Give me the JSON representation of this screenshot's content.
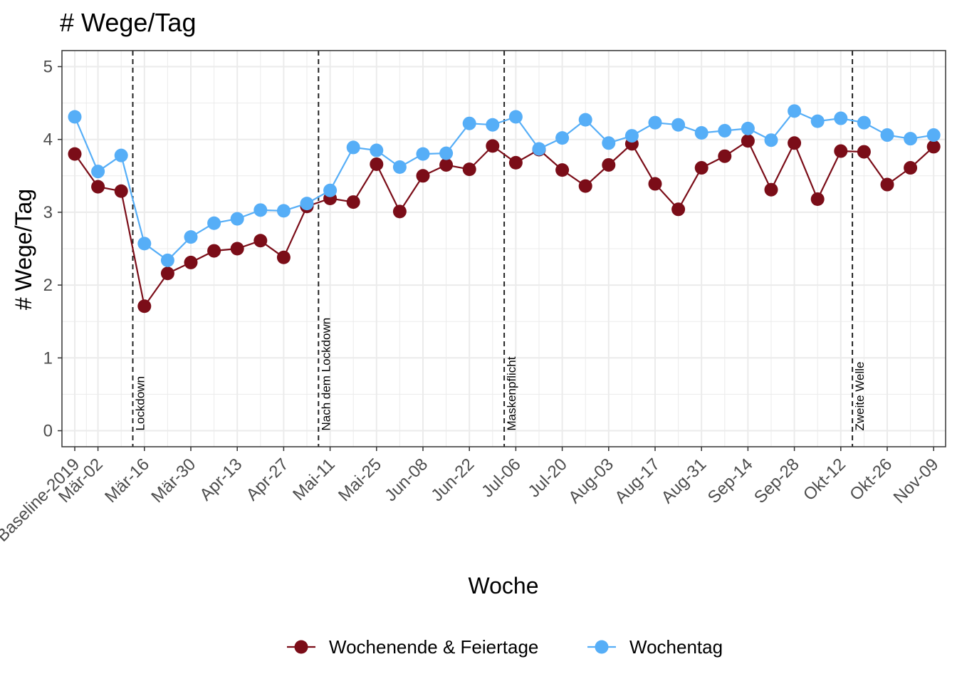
{
  "chart_data": {
    "type": "line",
    "title": "# Wege/Tag",
    "xlabel": "Woche",
    "ylabel": "# Wege/Tag",
    "ylim": [
      -0.22,
      5.22
    ],
    "yticks": [
      0,
      1,
      2,
      3,
      4,
      5
    ],
    "grid": true,
    "legend_position": "bottom",
    "x_tick_labels": [
      "Baseline-2019",
      "Mär-02",
      "Mär-16",
      "Mär-30",
      "Apr-13",
      "Apr-27",
      "Mai-11",
      "Mai-25",
      "Jun-08",
      "Jun-22",
      "Jul-06",
      "Jul-20",
      "Aug-03",
      "Aug-17",
      "Aug-31",
      "Sep-14",
      "Sep-28",
      "Okt-12",
      "Okt-26",
      "Nov-09"
    ],
    "series": [
      {
        "name": "Wochenende & Feiertage",
        "color": "#7b0d18",
        "values": [
          3.8,
          3.35,
          3.29,
          1.71,
          2.16,
          2.31,
          2.47,
          2.5,
          2.61,
          2.38,
          3.08,
          3.19,
          3.14,
          3.66,
          3.01,
          3.5,
          3.65,
          3.59,
          3.91,
          3.68,
          3.86,
          3.58,
          3.36,
          3.65,
          3.94,
          3.39,
          3.04,
          3.61,
          3.77,
          3.98,
          3.31,
          3.95,
          3.18,
          3.84,
          3.83,
          3.38,
          3.61,
          3.9
        ]
      },
      {
        "name": "Wochentag",
        "color": "#56aef7",
        "values": [
          4.31,
          3.56,
          3.78,
          2.57,
          2.34,
          2.66,
          2.85,
          2.91,
          3.03,
          3.02,
          3.12,
          3.3,
          3.89,
          3.85,
          3.62,
          3.8,
          3.81,
          4.22,
          4.2,
          4.31,
          3.87,
          4.02,
          4.27,
          3.95,
          4.05,
          4.23,
          4.2,
          4.09,
          4.12,
          4.15,
          3.99,
          4.39,
          4.25,
          4.29,
          4.23,
          4.06,
          4.01,
          4.06
        ]
      }
    ],
    "events": [
      {
        "label": "Lockdown"
      },
      {
        "label": "Nach dem Lockdown"
      },
      {
        "label": "Maskenpflicht"
      },
      {
        "label": "Zweite Welle"
      }
    ]
  }
}
